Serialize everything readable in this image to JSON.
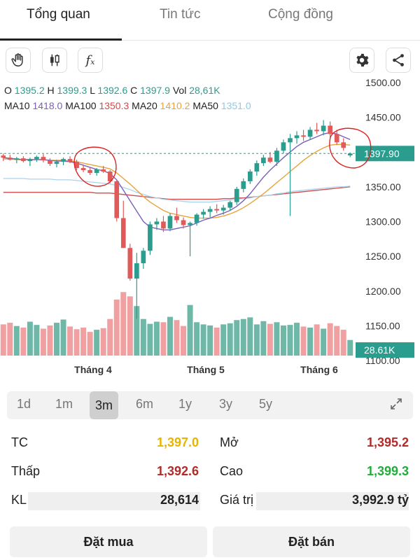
{
  "tabs": [
    {
      "label": "Tổng quan"
    },
    {
      "label": "Tin tức"
    },
    {
      "label": "Cộng đồng"
    }
  ],
  "toolbar": {
    "icons": [
      "hand-icon",
      "candlestick-icon",
      "function-icon",
      "gear-icon",
      "share-icon"
    ],
    "fx_label": "fₓ"
  },
  "ohlc": {
    "o_label": "O",
    "o": "1395.2",
    "h_label": "H",
    "h": "1399.3",
    "l_label": "L",
    "l": "1392.6",
    "c_label": "C",
    "c": "1397.9",
    "vol_label": "Vol",
    "vol": "28,61K"
  },
  "ma": {
    "ma10_label": "MA10",
    "ma10": "1418.0",
    "ma100_label": "MA100",
    "ma100": "1350.3",
    "ma20_label": "MA20",
    "ma20": "1410.2",
    "ma50_label": "MA50",
    "ma50": "1351.0"
  },
  "chart_data": {
    "type": "candlestick",
    "y_ticks": [
      "1500.00",
      "1450.00",
      "1400.00",
      "1350.00",
      "1300.00",
      "1250.00",
      "1200.00",
      "1150.00",
      "1100.00"
    ],
    "x_labels": [
      "Tháng 4",
      "Tháng 5",
      "Tháng 6"
    ],
    "last_price_label": "1397.90",
    "last_volume_label": "28.61K",
    "ylim": [
      1085,
      1510
    ],
    "candles": [
      [
        1395,
        1398,
        1387,
        1392
      ],
      [
        1392,
        1396,
        1388,
        1389
      ],
      [
        1389,
        1393,
        1384,
        1391
      ],
      [
        1391,
        1394,
        1385,
        1387
      ],
      [
        1387,
        1392,
        1380,
        1390
      ],
      [
        1390,
        1395,
        1386,
        1393
      ],
      [
        1393,
        1397,
        1385,
        1388
      ],
      [
        1388,
        1391,
        1380,
        1383
      ],
      [
        1383,
        1389,
        1378,
        1386
      ],
      [
        1386,
        1392,
        1381,
        1390
      ],
      [
        1390,
        1394,
        1384,
        1386
      ],
      [
        1386,
        1389,
        1374,
        1377
      ],
      [
        1377,
        1382,
        1371,
        1374
      ],
      [
        1374,
        1378,
        1367,
        1370
      ],
      [
        1370,
        1377,
        1366,
        1375
      ],
      [
        1375,
        1380,
        1370,
        1372
      ],
      [
        1372,
        1374,
        1355,
        1358
      ],
      [
        1358,
        1360,
        1300,
        1305
      ],
      [
        1305,
        1330,
        1262,
        1262
      ],
      [
        1262,
        1268,
        1215,
        1218
      ],
      [
        1218,
        1255,
        1160,
        1240
      ],
      [
        1240,
        1262,
        1232,
        1258
      ],
      [
        1258,
        1300,
        1252,
        1296
      ],
      [
        1296,
        1305,
        1288,
        1300
      ],
      [
        1300,
        1308,
        1285,
        1290
      ],
      [
        1290,
        1312,
        1286,
        1308
      ],
      [
        1308,
        1320,
        1298,
        1302
      ],
      [
        1302,
        1306,
        1290,
        1295
      ],
      [
        1295,
        1300,
        1250,
        1298
      ],
      [
        1298,
        1312,
        1294,
        1310
      ],
      [
        1310,
        1318,
        1304,
        1314
      ],
      [
        1314,
        1322,
        1306,
        1318
      ],
      [
        1318,
        1325,
        1312,
        1316
      ],
      [
        1316,
        1324,
        1310,
        1320
      ],
      [
        1320,
        1330,
        1316,
        1328
      ],
      [
        1328,
        1350,
        1324,
        1347
      ],
      [
        1347,
        1362,
        1342,
        1358
      ],
      [
        1358,
        1375,
        1354,
        1372
      ],
      [
        1372,
        1388,
        1366,
        1384
      ],
      [
        1384,
        1396,
        1380,
        1392
      ],
      [
        1392,
        1400,
        1384,
        1386
      ],
      [
        1386,
        1406,
        1380,
        1402
      ],
      [
        1402,
        1418,
        1398,
        1414
      ],
      [
        1414,
        1426,
        1308,
        1420
      ],
      [
        1420,
        1430,
        1412,
        1424
      ],
      [
        1424,
        1432,
        1416,
        1422
      ],
      [
        1422,
        1436,
        1418,
        1432
      ],
      [
        1432,
        1442,
        1426,
        1430
      ],
      [
        1430,
        1446,
        1424,
        1438
      ],
      [
        1438,
        1444,
        1420,
        1426
      ],
      [
        1426,
        1432,
        1410,
        1414
      ],
      [
        1414,
        1420,
        1402,
        1406
      ],
      [
        1395.2,
        1399.3,
        1392.6,
        1397.9
      ]
    ],
    "volumes": [
      58,
      61,
      55,
      52,
      63,
      57,
      50,
      56,
      61,
      67,
      54,
      49,
      52,
      44,
      48,
      51,
      68,
      104,
      118,
      110,
      92,
      68,
      59,
      63,
      62,
      72,
      66,
      55,
      94,
      62,
      58,
      56,
      52,
      58,
      60,
      66,
      68,
      71,
      58,
      64,
      59,
      62,
      56,
      57,
      61,
      54,
      52,
      58,
      50,
      60,
      55,
      48,
      29
    ],
    "ma10": [
      1392,
      1391,
      1390,
      1389,
      1389,
      1389,
      1389,
      1388,
      1387,
      1387,
      1386,
      1384,
      1381,
      1378,
      1375,
      1373,
      1369,
      1360,
      1345,
      1330,
      1315,
      1300,
      1292,
      1290,
      1288,
      1288,
      1290,
      1292,
      1294,
      1298,
      1302,
      1305,
      1309,
      1312,
      1316,
      1322,
      1330,
      1340,
      1352,
      1364,
      1374,
      1383,
      1392,
      1400,
      1408,
      1414,
      1418,
      1422,
      1426,
      1428,
      1426,
      1422,
      1418
    ],
    "ma20": [
      1390,
      1390,
      1389,
      1389,
      1389,
      1389,
      1389,
      1388,
      1388,
      1388,
      1387,
      1386,
      1384,
      1382,
      1380,
      1378,
      1376,
      1370,
      1362,
      1354,
      1345,
      1336,
      1328,
      1322,
      1316,
      1312,
      1310,
      1308,
      1306,
      1305,
      1305,
      1305,
      1306,
      1308,
      1311,
      1315,
      1320,
      1326,
      1333,
      1340,
      1348,
      1356,
      1364,
      1372,
      1380,
      1388,
      1395,
      1401,
      1406,
      1410,
      1411,
      1411,
      1410
    ],
    "ma50": [
      1362,
      1362,
      1362,
      1362,
      1361,
      1361,
      1361,
      1361,
      1360,
      1360,
      1360,
      1359,
      1358,
      1357,
      1356,
      1355,
      1354,
      1352,
      1349,
      1346,
      1342,
      1339,
      1336,
      1334,
      1332,
      1331,
      1330,
      1329,
      1328,
      1328,
      1328,
      1328,
      1329,
      1330,
      1331,
      1332,
      1333,
      1334,
      1336,
      1337,
      1338,
      1340,
      1341,
      1343,
      1344,
      1345,
      1346,
      1347,
      1348,
      1349,
      1350,
      1350,
      1351
    ],
    "ma100": [
      1342,
      1342,
      1342,
      1342,
      1342,
      1342,
      1342,
      1342,
      1342,
      1342,
      1342,
      1342,
      1342,
      1342,
      1341,
      1341,
      1341,
      1340,
      1339,
      1338,
      1337,
      1336,
      1335,
      1334,
      1333,
      1332,
      1332,
      1332,
      1332,
      1332,
      1332,
      1332,
      1332,
      1333,
      1333,
      1334,
      1334,
      1335,
      1336,
      1337,
      1338,
      1339,
      1340,
      1341,
      1342,
      1343,
      1344,
      1345,
      1346,
      1347,
      1348,
      1349,
      1350
    ]
  },
  "colors": {
    "up": "#2a9d8f",
    "down": "#e05a5a",
    "up_vol": "#6fb8a8",
    "down_vol": "#f0a0a0",
    "ma10": "#7b5fb8",
    "ma20": "#e8a33c",
    "ma50": "#a8d4ec",
    "ma100": "#d14a4a",
    "annotation": "#d22"
  },
  "ranges": [
    {
      "label": "1d"
    },
    {
      "label": "1m"
    },
    {
      "label": "3m"
    },
    {
      "label": "6m"
    },
    {
      "label": "1y"
    },
    {
      "label": "3y"
    },
    {
      "label": "5y"
    }
  ],
  "stats": {
    "tc_label": "TC",
    "tc": "1,397.0",
    "thap_label": "Thấp",
    "thap": "1,392.6",
    "kl_label": "KL",
    "kl": "28,614",
    "mo_label": "Mở",
    "mo": "1,395.2",
    "cao_label": "Cao",
    "cao": "1,399.3",
    "giatri_label": "Giá trị",
    "giatri": "3,992.9 tỷ"
  },
  "actions": {
    "buy": "Đặt mua",
    "sell": "Đặt bán"
  }
}
